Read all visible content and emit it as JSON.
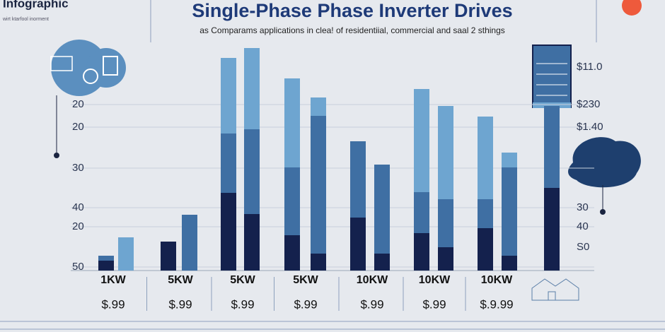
{
  "header": {
    "brand": "Infographic",
    "brand_sub": "wirt ktarfool inorment"
  },
  "chart_data": {
    "type": "stacked_bar",
    "title": "Single-Phase Phase Inverter Drives",
    "subtitle": "as Comparams applications in clea! of residentiial, commercial and saal 2 sthings",
    "ylim": [
      0,
      323
    ],
    "series": [
      {
        "color": "#14214d",
        "values": [
          14,
          0,
          41,
          0,
          110,
          80,
          50,
          24,
          75,
          24,
          53,
          33,
          60,
          21,
          117
        ]
      },
      {
        "color": "#3f6fa3",
        "values": [
          7,
          0,
          0,
          79,
          84,
          120,
          96,
          195,
          108,
          126,
          58,
          68,
          41,
          125,
          116
        ]
      },
      {
        "color": "#6ea5d0",
        "values": [
          0,
          47,
          0,
          0,
          107,
          115,
          126,
          26,
          0,
          0,
          146,
          132,
          117,
          21,
          0
        ]
      }
    ],
    "groups": [
      {
        "label": "1KW",
        "price": "$.99"
      },
      {
        "label": "5KW",
        "price": "$.99"
      },
      {
        "label": "5KW",
        "price": "$.99"
      },
      {
        "label": "5KW",
        "price": "$.99"
      },
      {
        "label": "10KW",
        "price": "$.99"
      },
      {
        "label": "10KW",
        "price": "$.99"
      },
      {
        "label": "10KW",
        "price": "$.9.99"
      }
    ],
    "left_labels": [
      "20",
      "20",
      "30",
      "40",
      "20",
      "50"
    ],
    "right_labels": [
      "$11.0",
      "$230",
      "$1.40",
      "30",
      "40",
      "S0"
    ]
  }
}
